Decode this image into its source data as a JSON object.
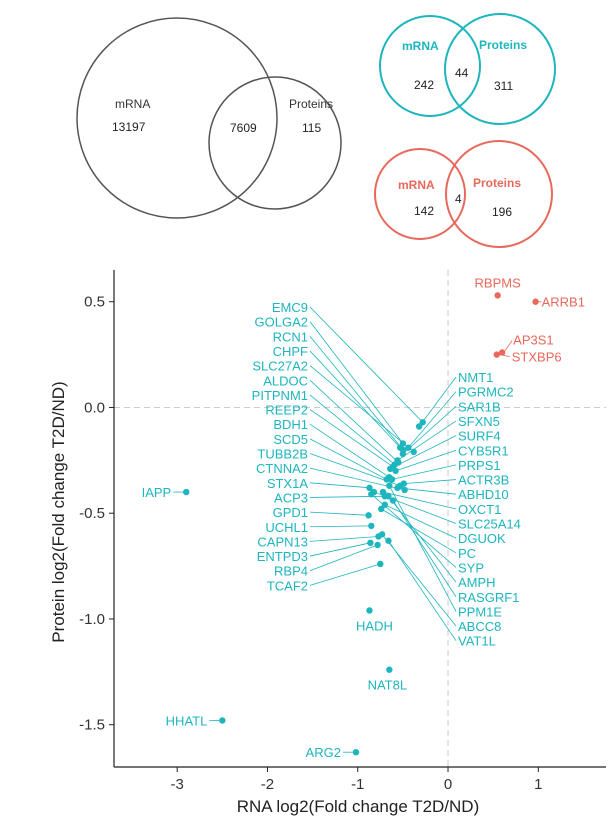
{
  "venn_total": {
    "left_label": "mRNA",
    "left_count": "13197",
    "overlap_count": "7609",
    "right_label": "Proteins",
    "right_count": "115",
    "color": "#555555"
  },
  "venn_up": {
    "left_label": "mRNA",
    "left_count": "242",
    "overlap_count": "44",
    "right_label": "Proteins",
    "right_count": "311",
    "color": "#1DB5BE"
  },
  "venn_down": {
    "left_label": "mRNA",
    "left_count": "142",
    "overlap_count": "4",
    "right_label": "Proteins",
    "right_count": "196",
    "color": "#E8695C"
  },
  "colors": {
    "teal": "#1DB5BE",
    "red": "#E8695C",
    "axis": "#222222",
    "dashed": "#cccccc"
  },
  "chart_data": {
    "type": "scatter",
    "xlabel": "RNA log2(Fold change T2D/ND)",
    "ylabel": "Protein log2(Fold change T2D/ND)",
    "xlim": [
      -3.7,
      1.75
    ],
    "ylim": [
      -1.7,
      0.65
    ],
    "x_ticks": [
      -3,
      -2,
      -1,
      0,
      1
    ],
    "y_ticks": [
      0.5,
      0.0,
      -0.5,
      -1.0,
      -1.5
    ],
    "x_tick_labels": [
      "-3",
      "-2",
      "-1",
      "0",
      "1"
    ],
    "y_tick_labels": [
      "0.5",
      "0.0",
      "-0.5",
      "-1.0",
      "-1.5"
    ],
    "reference_lines": {
      "x": 0,
      "y": 0
    },
    "red_points": [
      {
        "label": "RBPMS",
        "x": 0.55,
        "y": 0.53
      },
      {
        "label": "ARRB1",
        "x": 0.97,
        "y": 0.5
      },
      {
        "label": "AP3S1",
        "x": 0.6,
        "y": 0.26
      },
      {
        "label": "STXBP6",
        "x": 0.54,
        "y": 0.25
      }
    ],
    "teal_left_labeled": [
      {
        "label": "EMC9",
        "x": -0.28,
        "y": -0.07
      },
      {
        "label": "GOLGA2",
        "x": -0.5,
        "y": -0.17
      },
      {
        "label": "RCN1",
        "x": -0.5,
        "y": -0.2
      },
      {
        "label": "CHPF",
        "x": -0.53,
        "y": -0.19
      },
      {
        "label": "SLC27A2",
        "x": -0.38,
        "y": -0.21
      },
      {
        "label": "ALDOC",
        "x": -0.55,
        "y": -0.26
      },
      {
        "label": "PITPNM1",
        "x": -0.59,
        "y": -0.27
      },
      {
        "label": "REEP2",
        "x": -0.61,
        "y": -0.28
      },
      {
        "label": "BDH1",
        "x": -0.65,
        "y": -0.33
      },
      {
        "label": "SCD5",
        "x": -0.68,
        "y": -0.34
      },
      {
        "label": "TUBB2B",
        "x": -0.53,
        "y": -0.37
      },
      {
        "label": "CTNNA2",
        "x": -0.48,
        "y": -0.39
      },
      {
        "label": "STX1A",
        "x": -0.87,
        "y": -0.38
      },
      {
        "label": "ACP3",
        "x": -0.7,
        "y": -0.42
      },
      {
        "label": "GPD1",
        "x": -0.88,
        "y": -0.51
      },
      {
        "label": "UCHL1",
        "x": -0.85,
        "y": -0.56
      },
      {
        "label": "CAPN13",
        "x": -0.77,
        "y": -0.61
      },
      {
        "label": "ENTPD3",
        "x": -0.86,
        "y": -0.64
      },
      {
        "label": "RBP4",
        "x": -0.78,
        "y": -0.65
      },
      {
        "label": "TCAF2",
        "x": -0.75,
        "y": -0.74
      }
    ],
    "teal_right_labeled": [
      {
        "label": "NMT1",
        "x": -0.32,
        "y": -0.09
      },
      {
        "label": "PGRMC2",
        "x": -0.44,
        "y": -0.19
      },
      {
        "label": "SAR1B",
        "x": -0.5,
        "y": -0.22
      },
      {
        "label": "SFXN5",
        "x": -0.56,
        "y": -0.25
      },
      {
        "label": "SURF4",
        "x": -0.64,
        "y": -0.29
      },
      {
        "label": "CYB5R1",
        "x": -0.58,
        "y": -0.3
      },
      {
        "label": "PRPS1",
        "x": -0.62,
        "y": -0.34
      },
      {
        "label": "ACTR3B",
        "x": -0.49,
        "y": -0.36
      },
      {
        "label": "ABHD10",
        "x": -0.56,
        "y": -0.38
      },
      {
        "label": "OXCT1",
        "x": -0.72,
        "y": -0.4
      },
      {
        "label": "SLC25A14",
        "x": -0.82,
        "y": -0.4
      },
      {
        "label": "DGUOK",
        "x": -0.7,
        "y": -0.46
      },
      {
        "label": "PC",
        "x": -0.74,
        "y": -0.48
      },
      {
        "label": "SYP",
        "x": -0.85,
        "y": -0.41
      },
      {
        "label": "AMPH",
        "x": -0.66,
        "y": -0.42
      },
      {
        "label": "RASGRF1",
        "x": -0.61,
        "y": -0.44
      },
      {
        "label": "PPM1E",
        "x": -0.65,
        "y": -0.37
      },
      {
        "label": "ABCC8",
        "x": -0.73,
        "y": -0.6
      },
      {
        "label": "VAT1L",
        "x": -0.66,
        "y": -0.63
      }
    ],
    "teal_direct_labeled": [
      {
        "label": "IAPP",
        "x": -2.9,
        "y": -0.4
      },
      {
        "label": "HADH",
        "x": -0.87,
        "y": -0.96
      },
      {
        "label": "NAT8L",
        "x": -0.65,
        "y": -1.24
      },
      {
        "label": "HHATL",
        "x": -2.5,
        "y": -1.48
      },
      {
        "label": "ARG2",
        "x": -1.02,
        "y": -1.63
      }
    ]
  }
}
